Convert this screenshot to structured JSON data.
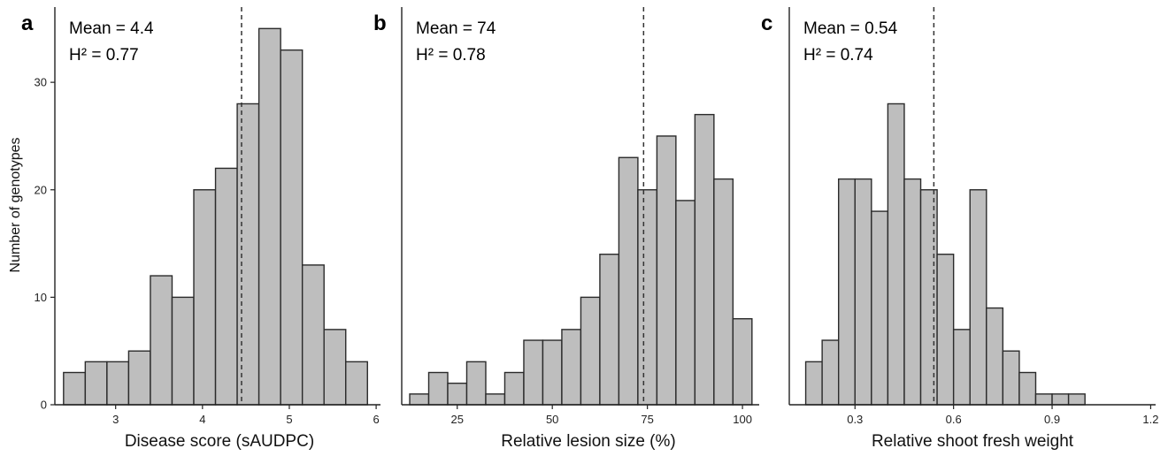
{
  "figure": {
    "ylabel": "Number of genotypes"
  },
  "chart_data": [
    {
      "type": "bar",
      "panel": "a",
      "annotation_mean": "Mean = 4.4",
      "annotation_h2": "H² = 0.77",
      "xlabel": "Disease score (sAUDPC)",
      "ylabel": "Number of genotypes",
      "mean": 4.45,
      "bin_start": 2.4,
      "bin_width": 0.25,
      "values": [
        3,
        4,
        4,
        5,
        12,
        10,
        20,
        22,
        28,
        35,
        33,
        13,
        7,
        4
      ],
      "xlim": [
        2.3,
        6.05
      ],
      "ylim": [
        0,
        37
      ],
      "xticks": [
        3,
        4,
        5,
        6
      ],
      "xtick_labels": [
        "3",
        "4",
        "5",
        "6"
      ],
      "yticks": [
        0,
        10,
        20,
        30
      ],
      "ytick_labels": [
        "0",
        "10",
        "20",
        "30"
      ]
    },
    {
      "type": "bar",
      "panel": "b",
      "annotation_mean": "Mean = 74",
      "annotation_h2": "H² = 0.78",
      "xlabel": "Relative lesion size (%)",
      "mean": 74,
      "bin_start": 12.5,
      "bin_width": 5,
      "values": [
        1,
        3,
        2,
        4,
        1,
        3,
        6,
        6,
        7,
        10,
        14,
        23,
        20,
        25,
        19,
        27,
        21,
        8
      ],
      "xlim": [
        10.4,
        104.4
      ],
      "ylim": [
        0,
        37
      ],
      "xticks": [
        25,
        50,
        75,
        100
      ],
      "xtick_labels": [
        "25",
        "50",
        "75",
        "100"
      ]
    },
    {
      "type": "bar",
      "panel": "c",
      "annotation_mean": "Mean = 0.54",
      "annotation_h2": "H² = 0.74",
      "xlabel": "Relative shoot fresh weight",
      "mean": 0.54,
      "bin_start": 0.15,
      "bin_width": 0.05,
      "values": [
        4,
        6,
        21,
        21,
        18,
        28,
        21,
        20,
        14,
        7,
        20,
        9,
        5,
        3,
        1,
        1,
        1
      ],
      "xlim": [
        0.1,
        1.215
      ],
      "ylim": [
        0,
        37
      ],
      "xticks": [
        0.3,
        0.6,
        0.9,
        1.2
      ],
      "xtick_labels": [
        "0.3",
        "0.6",
        "0.9",
        "1.2"
      ]
    }
  ]
}
